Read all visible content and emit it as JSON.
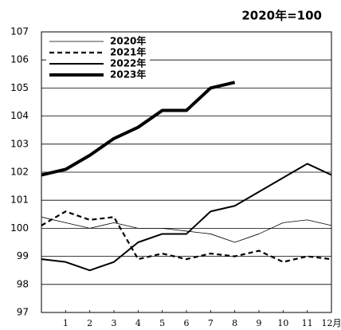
{
  "chart_data": {
    "type": "line",
    "annotation": "2020年=100",
    "x": [
      0,
      1,
      2,
      3,
      4,
      5,
      6,
      7,
      8,
      9,
      10,
      11,
      12
    ],
    "xlim": [
      0,
      12
    ],
    "xticks": [
      1,
      2,
      3,
      4,
      5,
      6,
      7,
      8,
      9,
      10,
      11,
      {
        "value": 12,
        "label": "12月"
      }
    ],
    "ylim": [
      97,
      107
    ],
    "yticks": [
      97,
      98,
      99,
      100,
      101,
      102,
      103,
      104,
      105,
      106,
      107
    ],
    "grid": true,
    "legend": "upper left",
    "series": [
      {
        "name": "2020年",
        "color": "#000000",
        "line_width": 0.8,
        "line_style": "solid",
        "values": [
          100.4,
          100.2,
          100.0,
          100.2,
          100.0,
          100.0,
          99.9,
          99.8,
          99.5,
          99.8,
          100.2,
          100.3,
          100.1
        ]
      },
      {
        "name": "2021年",
        "color": "#000000",
        "line_width": 2.2,
        "line_style": "dashed",
        "values": [
          100.1,
          100.6,
          100.3,
          100.4,
          98.9,
          99.1,
          98.9,
          99.1,
          99.0,
          99.2,
          98.8,
          99.0,
          98.9
        ]
      },
      {
        "name": "2022年",
        "color": "#000000",
        "line_width": 2,
        "line_style": "solid",
        "values": [
          98.9,
          98.8,
          98.5,
          98.8,
          99.5,
          99.8,
          99.8,
          100.6,
          100.8,
          101.3,
          101.8,
          102.3,
          101.9
        ]
      },
      {
        "name": "2023年",
        "color": "#000000",
        "line_width": 4,
        "line_style": "solid",
        "values": [
          101.9,
          102.1,
          102.6,
          103.2,
          103.6,
          104.2,
          104.2,
          105.0,
          105.2,
          null,
          null,
          null,
          null
        ]
      }
    ]
  }
}
